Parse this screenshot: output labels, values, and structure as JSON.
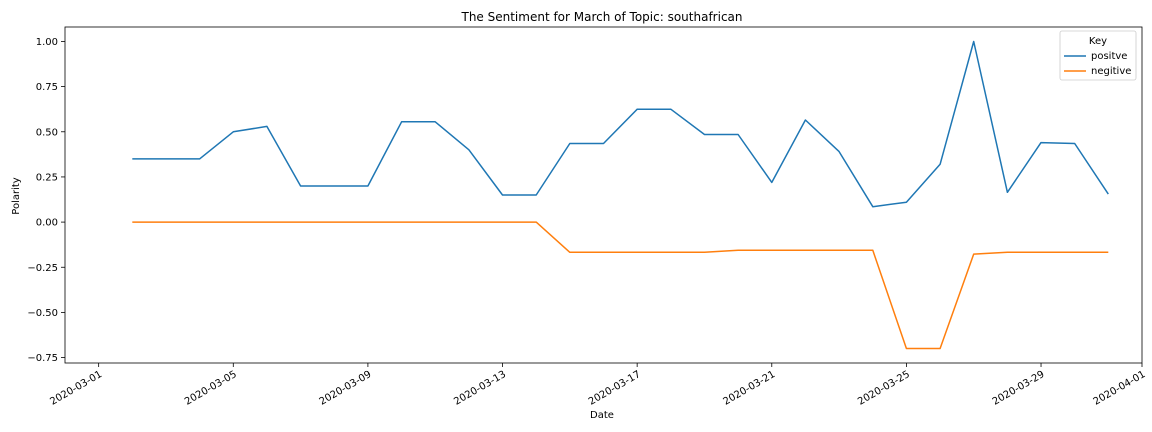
{
  "chart_data": {
    "type": "line",
    "title": "The Sentiment for March of Topic: southafrican",
    "xlabel": "Date",
    "ylabel": "Polarity",
    "xlim": [
      "2020-02-29",
      "2020-04-01"
    ],
    "ylim": [
      -0.78,
      1.08
    ],
    "x_ticks": [
      "2020-03-01",
      "2020-03-05",
      "2020-03-09",
      "2020-03-13",
      "2020-03-17",
      "2020-03-21",
      "2020-03-25",
      "2020-03-29",
      "2020-04-01"
    ],
    "y_ticks": [
      "1.00",
      "0.75",
      "0.50",
      "0.25",
      "0.00",
      "−0.25",
      "−0.50",
      "−0.75"
    ],
    "grid": false,
    "legend": {
      "title": "Key",
      "placement": "top-right"
    },
    "x": [
      "2020-03-02",
      "2020-03-03",
      "2020-03-04",
      "2020-03-05",
      "2020-03-06",
      "2020-03-07",
      "2020-03-08",
      "2020-03-09",
      "2020-03-10",
      "2020-03-11",
      "2020-03-12",
      "2020-03-13",
      "2020-03-14",
      "2020-03-15",
      "2020-03-16",
      "2020-03-17",
      "2020-03-18",
      "2020-03-19",
      "2020-03-20",
      "2020-03-21",
      "2020-03-22",
      "2020-03-23",
      "2020-03-24",
      "2020-03-25",
      "2020-03-26",
      "2020-03-27",
      "2020-03-28",
      "2020-03-29",
      "2020-03-30",
      "2020-03-31"
    ],
    "series": [
      {
        "name": "positve",
        "color": "#1f77b4",
        "values": [
          0.35,
          0.35,
          0.35,
          0.5,
          0.53,
          0.2,
          0.2,
          0.2,
          0.555,
          0.555,
          0.4,
          0.15,
          0.15,
          0.435,
          0.435,
          0.625,
          0.625,
          0.485,
          0.485,
          0.22,
          0.565,
          0.39,
          0.085,
          0.11,
          0.32,
          1.0,
          0.165,
          0.44,
          0.435,
          0.155
        ]
      },
      {
        "name": "negitive",
        "color": "#ff7f0e",
        "values": [
          0.0,
          0.0,
          0.0,
          0.0,
          0.0,
          0.0,
          0.0,
          0.0,
          0.0,
          0.0,
          0.0,
          0.0,
          0.0,
          -0.167,
          -0.167,
          -0.167,
          -0.167,
          -0.167,
          -0.156,
          -0.156,
          -0.156,
          -0.156,
          -0.156,
          -0.7,
          -0.7,
          -0.177,
          -0.167,
          -0.167,
          -0.167,
          -0.167
        ]
      }
    ]
  }
}
